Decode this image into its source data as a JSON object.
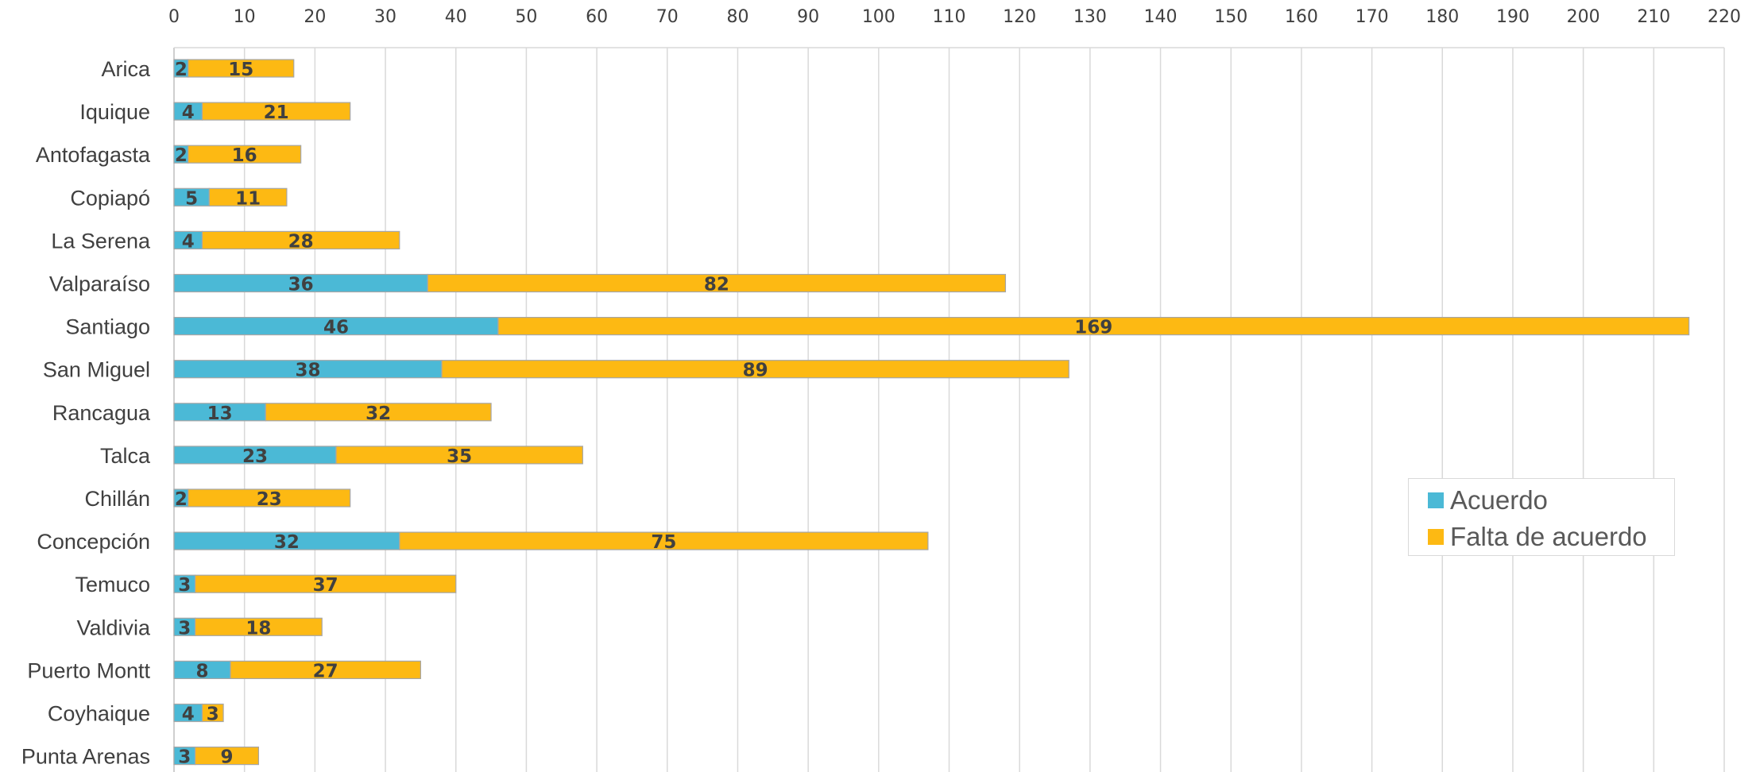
{
  "chart_data": {
    "type": "bar",
    "orientation": "horizontal",
    "stacked": true,
    "categories": [
      "Arica",
      "Iquique",
      "Antofagasta",
      "Copiapó",
      "La Serena",
      "Valparaíso",
      "Santiago",
      "San Miguel",
      "Rancagua",
      "Talca",
      "Chillán",
      "Concepción",
      "Temuco",
      "Valdivia",
      "Puerto Montt",
      "Coyhaique",
      "Punta Arenas"
    ],
    "series": [
      {
        "name": "Acuerdo",
        "color": "#4bb9d6",
        "values": [
          2,
          4,
          2,
          5,
          4,
          36,
          46,
          38,
          13,
          23,
          2,
          32,
          3,
          3,
          8,
          4,
          3
        ]
      },
      {
        "name": "Falta de acuerdo",
        "color": "#fdb913",
        "values": [
          15,
          21,
          16,
          11,
          28,
          82,
          169,
          89,
          32,
          35,
          23,
          75,
          37,
          18,
          27,
          3,
          9
        ]
      }
    ],
    "x_ticks": [
      0,
      10,
      20,
      30,
      40,
      50,
      60,
      70,
      80,
      90,
      100,
      110,
      120,
      130,
      140,
      150,
      160,
      170,
      180,
      190,
      200,
      210,
      220
    ],
    "xlim": [
      0,
      220
    ],
    "x_axis_position": "top",
    "grid": true,
    "legend_position": "right",
    "data_labels": true,
    "title": "",
    "xlabel": "",
    "ylabel": ""
  }
}
